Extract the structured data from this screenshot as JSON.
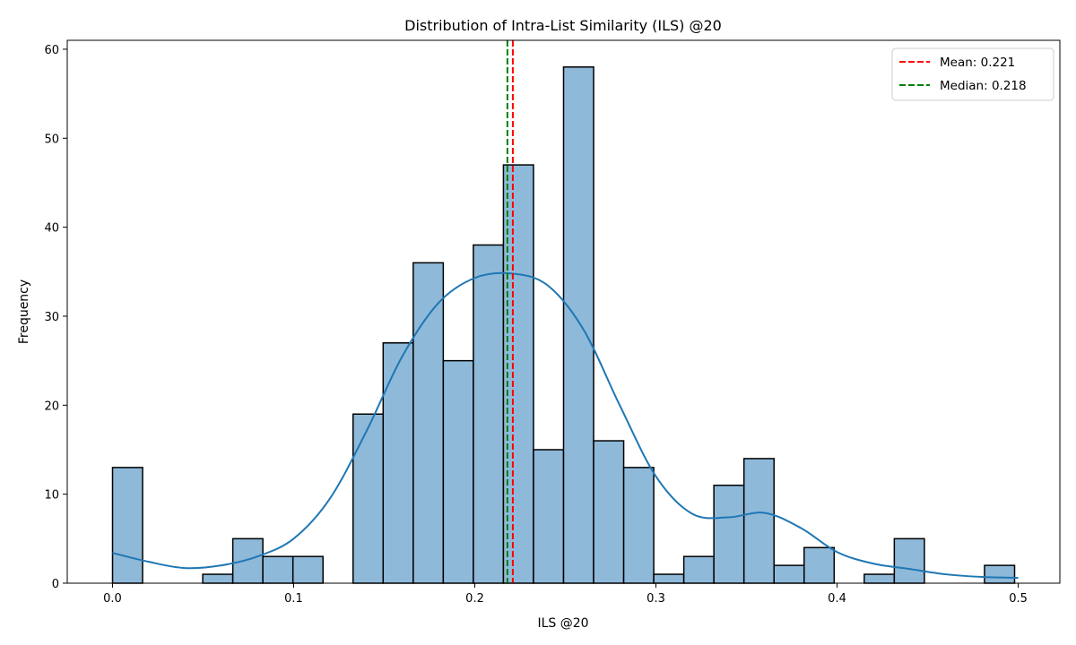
{
  "chart_data": {
    "type": "bar",
    "title": "Distribution of Intra-List Similarity (ILS) @20",
    "xlabel": "ILS @20",
    "ylabel": "Frequency",
    "xlim": [
      -0.025,
      0.523
    ],
    "ylim": [
      0,
      61
    ],
    "bin_start": 0.0,
    "bin_width": 0.0166,
    "counts": [
      13,
      0,
      0,
      1,
      5,
      3,
      3,
      0,
      19,
      27,
      36,
      25,
      38,
      47,
      15,
      58,
      16,
      13,
      1,
      3,
      11,
      14,
      2,
      4,
      0,
      1,
      5,
      0,
      0,
      2
    ],
    "x_ticks": [
      {
        "value": 0.0,
        "label": "0.0"
      },
      {
        "value": 0.1,
        "label": "0.1"
      },
      {
        "value": 0.2,
        "label": "0.2"
      },
      {
        "value": 0.3,
        "label": "0.3"
      },
      {
        "value": 0.4,
        "label": "0.4"
      },
      {
        "value": 0.5,
        "label": "0.5"
      }
    ],
    "y_ticks": [
      {
        "value": 0,
        "label": "0"
      },
      {
        "value": 10,
        "label": "10"
      },
      {
        "value": 20,
        "label": "20"
      },
      {
        "value": 30,
        "label": "30"
      },
      {
        "value": 40,
        "label": "40"
      },
      {
        "value": 50,
        "label": "50"
      },
      {
        "value": 60,
        "label": "60"
      }
    ],
    "kde": {
      "x": [
        0.0,
        0.02,
        0.04,
        0.06,
        0.08,
        0.1,
        0.12,
        0.14,
        0.16,
        0.18,
        0.2,
        0.22,
        0.24,
        0.26,
        0.28,
        0.3,
        0.32,
        0.34,
        0.36,
        0.38,
        0.4,
        0.42,
        0.44,
        0.46,
        0.48,
        0.5
      ],
      "y": [
        3.4,
        2.4,
        1.7,
        2.0,
        3.0,
        5.0,
        9.5,
        17.0,
        25.5,
        31.5,
        34.3,
        34.8,
        33.5,
        28.5,
        20.0,
        12.0,
        7.8,
        7.4,
        7.9,
        6.2,
        3.5,
        2.2,
        1.6,
        1.0,
        0.7,
        0.6
      ]
    },
    "vlines": [
      {
        "value": 0.221,
        "label": "Mean: 0.221",
        "color": "#ff0000"
      },
      {
        "value": 0.218,
        "label": "Median: 0.218",
        "color": "#008000"
      }
    ],
    "bar_color": "#8fb9d9",
    "bar_edge": "#000000",
    "kde_color": "#1f77b4",
    "legend": "top-right"
  }
}
